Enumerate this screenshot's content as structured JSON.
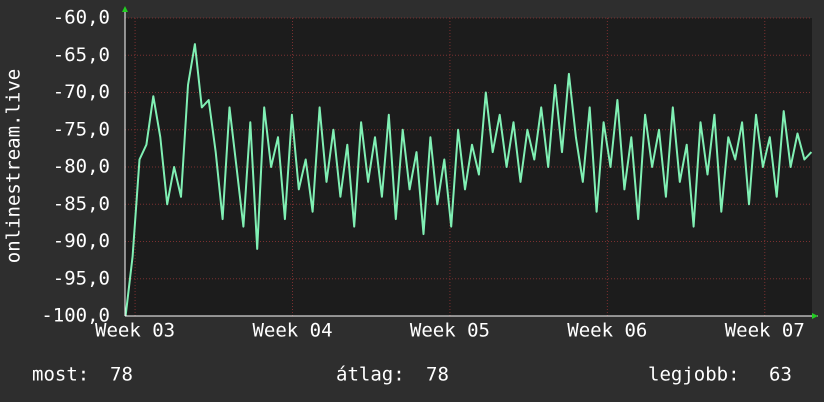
{
  "chart_data": {
    "type": "line",
    "ylabel": "onlinestream.live",
    "xlim": [
      2.936,
      7.3
    ],
    "xticks": [
      {
        "value": 3,
        "label": "Week 03"
      },
      {
        "value": 4,
        "label": "Week 04"
      },
      {
        "value": 5,
        "label": "Week 05"
      },
      {
        "value": 6,
        "label": "Week 06"
      },
      {
        "value": 7,
        "label": "Week 07"
      }
    ],
    "ylim": [
      -100,
      -60
    ],
    "yticks": [
      {
        "value": -60,
        "label": "-60,0"
      },
      {
        "value": -65,
        "label": "-65,0"
      },
      {
        "value": -70,
        "label": "-70,0"
      },
      {
        "value": -75,
        "label": "-75,0"
      },
      {
        "value": -80,
        "label": "-80,0"
      },
      {
        "value": -85,
        "label": "-85,0"
      },
      {
        "value": -90,
        "label": "-90,0"
      },
      {
        "value": -95,
        "label": "-95,0"
      },
      {
        "value": -100,
        "label": "-100,0"
      }
    ],
    "grid": true,
    "x": [
      2.94,
      2.984,
      3.028,
      3.072,
      3.116,
      3.16,
      3.204,
      3.248,
      3.292,
      3.336,
      3.38,
      3.424,
      3.468,
      3.512,
      3.556,
      3.6,
      3.644,
      3.688,
      3.732,
      3.776,
      3.82,
      3.864,
      3.908,
      3.952,
      3.996,
      4.04,
      4.084,
      4.128,
      4.172,
      4.216,
      4.26,
      4.304,
      4.348,
      4.392,
      4.436,
      4.48,
      4.524,
      4.568,
      4.612,
      4.656,
      4.7,
      4.744,
      4.788,
      4.832,
      4.876,
      4.92,
      4.964,
      5.008,
      5.052,
      5.096,
      5.14,
      5.184,
      5.228,
      5.272,
      5.316,
      5.36,
      5.404,
      5.448,
      5.492,
      5.536,
      5.58,
      5.624,
      5.668,
      5.712,
      5.756,
      5.8,
      5.844,
      5.888,
      5.932,
      5.976,
      6.02,
      6.064,
      6.108,
      6.152,
      6.196,
      6.24,
      6.284,
      6.328,
      6.372,
      6.416,
      6.46,
      6.504,
      6.548,
      6.592,
      6.636,
      6.68,
      6.724,
      6.768,
      6.812,
      6.856,
      6.9,
      6.944,
      6.988,
      7.032,
      7.076,
      7.12,
      7.164,
      7.208,
      7.252,
      7.296
    ],
    "series": [
      {
        "color": "#80f0b4",
        "values": [
          -100,
          -92,
          -79,
          -77,
          -70.5,
          -76,
          -85,
          -80,
          -84,
          -69,
          -63.5,
          -72,
          -71,
          -78,
          -87,
          -72,
          -80,
          -88,
          -74,
          -91,
          -72,
          -80,
          -76,
          -87,
          -73,
          -83,
          -79,
          -86,
          -72,
          -82,
          -75,
          -84,
          -77,
          -88,
          -74,
          -82,
          -76,
          -84,
          -73,
          -87,
          -75,
          -83,
          -78,
          -89,
          -76,
          -85,
          -79,
          -88,
          -75,
          -83,
          -77,
          -81,
          -70,
          -78,
          -73,
          -80,
          -74,
          -82,
          -75,
          -79,
          -72,
          -80,
          -69,
          -78,
          -67.5,
          -76,
          -82,
          -72,
          -86,
          -74,
          -80,
          -71,
          -83,
          -76,
          -87,
          -73,
          -80,
          -75,
          -84,
          -72,
          -82,
          -77,
          -88,
          -74,
          -81,
          -73,
          -86,
          -76,
          -79,
          -74,
          -85,
          -73,
          -80,
          -76,
          -84,
          -72.5,
          -80,
          -75.5,
          -79,
          -78
        ]
      }
    ]
  },
  "footer": [
    {
      "label": "most:",
      "value": 78
    },
    {
      "label": "átlag:",
      "value": 78
    },
    {
      "label": "legjobb:",
      "value": 63
    }
  ]
}
